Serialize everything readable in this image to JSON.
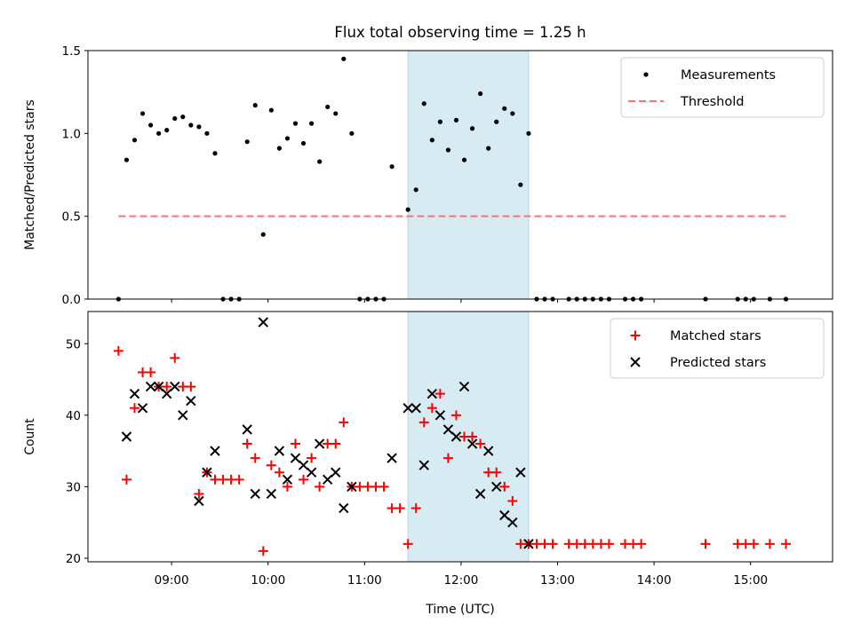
{
  "chart_data": [
    {
      "type": "scatter",
      "title": "Flux total observing time = 1.25 h",
      "ylabel": "Matched/Predicted stars",
      "xlabel": "",
      "ylim": [
        0,
        1.5
      ],
      "yticks": [
        "0.0",
        "0.5",
        "1.0",
        "1.5"
      ],
      "legend_position": "top-right",
      "shaded_interval": [
        "11:27",
        "12:42"
      ],
      "series": [
        {
          "name": "Measurements",
          "marker": "dot",
          "color": "#000000",
          "points": [
            [
              "08:27",
              0.0
            ],
            [
              "08:32",
              0.84
            ],
            [
              "08:37",
              0.96
            ],
            [
              "08:42",
              1.12
            ],
            [
              "08:47",
              1.05
            ],
            [
              "08:52",
              1.0
            ],
            [
              "08:57",
              1.02
            ],
            [
              "09:02",
              1.09
            ],
            [
              "09:07",
              1.1
            ],
            [
              "09:12",
              1.05
            ],
            [
              "09:17",
              1.04
            ],
            [
              "09:22",
              1.0
            ],
            [
              "09:27",
              0.88
            ],
            [
              "09:32",
              0.0
            ],
            [
              "09:37",
              0.0
            ],
            [
              "09:42",
              0.0
            ],
            [
              "09:47",
              0.95
            ],
            [
              "09:52",
              1.17
            ],
            [
              "09:57",
              0.39
            ],
            [
              "10:02",
              1.14
            ],
            [
              "10:07",
              0.91
            ],
            [
              "10:12",
              0.97
            ],
            [
              "10:17",
              1.06
            ],
            [
              "10:22",
              0.94
            ],
            [
              "10:27",
              1.06
            ],
            [
              "10:32",
              0.83
            ],
            [
              "10:37",
              1.16
            ],
            [
              "10:42",
              1.12
            ],
            [
              "10:47",
              1.45
            ],
            [
              "10:52",
              1.0
            ],
            [
              "10:57",
              0.0
            ],
            [
              "11:02",
              0.0
            ],
            [
              "11:07",
              0.0
            ],
            [
              "11:12",
              0.0
            ],
            [
              "11:17",
              0.8
            ],
            [
              "11:27",
              0.54
            ],
            [
              "11:32",
              0.66
            ],
            [
              "11:37",
              1.18
            ],
            [
              "11:42",
              0.96
            ],
            [
              "11:47",
              1.07
            ],
            [
              "11:52",
              0.9
            ],
            [
              "11:57",
              1.08
            ],
            [
              "12:02",
              0.84
            ],
            [
              "12:07",
              1.03
            ],
            [
              "12:12",
              1.24
            ],
            [
              "12:17",
              0.91
            ],
            [
              "12:22",
              1.07
            ],
            [
              "12:27",
              1.15
            ],
            [
              "12:32",
              1.12
            ],
            [
              "12:37",
              0.69
            ],
            [
              "12:42",
              1.0
            ],
            [
              "12:47",
              0.0
            ],
            [
              "12:52",
              0.0
            ],
            [
              "12:57",
              0.0
            ],
            [
              "13:07",
              0.0
            ],
            [
              "13:12",
              0.0
            ],
            [
              "13:17",
              0.0
            ],
            [
              "13:22",
              0.0
            ],
            [
              "13:27",
              0.0
            ],
            [
              "13:32",
              0.0
            ],
            [
              "13:42",
              0.0
            ],
            [
              "13:47",
              0.0
            ],
            [
              "13:52",
              0.0
            ],
            [
              "14:32",
              0.0
            ],
            [
              "14:52",
              0.0
            ],
            [
              "14:57",
              0.0
            ],
            [
              "15:02",
              0.0
            ],
            [
              "15:12",
              0.0
            ],
            [
              "15:22",
              0.0
            ]
          ]
        },
        {
          "name": "Threshold",
          "marker": "dashed-line",
          "color": "#ff7070",
          "points": [
            [
              "08:27",
              0.5
            ],
            [
              "15:22",
              0.5
            ]
          ]
        }
      ]
    },
    {
      "type": "scatter",
      "title": "",
      "ylabel": "Count",
      "xlabel": "Time (UTC)",
      "ylim": [
        19.5,
        54.5
      ],
      "yticks": [
        "20",
        "30",
        "40",
        "50"
      ],
      "xticks": [
        "09:00",
        "10:00",
        "11:00",
        "12:00",
        "13:00",
        "14:00",
        "15:00"
      ],
      "legend_position": "top-right",
      "shaded_interval": [
        "11:27",
        "12:42"
      ],
      "series": [
        {
          "name": "Matched stars",
          "marker": "plus",
          "color": "#ff0000",
          "points": [
            [
              "08:27",
              49
            ],
            [
              "08:32",
              31
            ],
            [
              "08:37",
              41
            ],
            [
              "08:42",
              46
            ],
            [
              "08:47",
              46
            ],
            [
              "08:52",
              44
            ],
            [
              "08:57",
              44
            ],
            [
              "09:02",
              48
            ],
            [
              "09:07",
              44
            ],
            [
              "09:12",
              44
            ],
            [
              "09:17",
              29
            ],
            [
              "09:22",
              32
            ],
            [
              "09:27",
              31
            ],
            [
              "09:32",
              31
            ],
            [
              "09:37",
              31
            ],
            [
              "09:42",
              31
            ],
            [
              "09:47",
              36
            ],
            [
              "09:52",
              34
            ],
            [
              "09:57",
              21
            ],
            [
              "10:02",
              33
            ],
            [
              "10:07",
              32
            ],
            [
              "10:12",
              30
            ],
            [
              "10:17",
              36
            ],
            [
              "10:22",
              31
            ],
            [
              "10:27",
              34
            ],
            [
              "10:32",
              30
            ],
            [
              "10:37",
              36
            ],
            [
              "10:42",
              36
            ],
            [
              "10:47",
              39
            ],
            [
              "10:52",
              30
            ],
            [
              "10:57",
              30
            ],
            [
              "11:02",
              30
            ],
            [
              "11:07",
              30
            ],
            [
              "11:12",
              30
            ],
            [
              "11:17",
              27
            ],
            [
              "11:22",
              27
            ],
            [
              "11:27",
              22
            ],
            [
              "11:32",
              27
            ],
            [
              "11:37",
              39
            ],
            [
              "11:42",
              41
            ],
            [
              "11:47",
              43
            ],
            [
              "11:52",
              34
            ],
            [
              "11:57",
              40
            ],
            [
              "12:02",
              37
            ],
            [
              "12:07",
              37
            ],
            [
              "12:12",
              36
            ],
            [
              "12:17",
              32
            ],
            [
              "12:22",
              32
            ],
            [
              "12:27",
              30
            ],
            [
              "12:32",
              28
            ],
            [
              "12:37",
              22
            ],
            [
              "12:42",
              22
            ],
            [
              "12:47",
              22
            ],
            [
              "12:52",
              22
            ],
            [
              "12:57",
              22
            ],
            [
              "13:07",
              22
            ],
            [
              "13:12",
              22
            ],
            [
              "13:17",
              22
            ],
            [
              "13:22",
              22
            ],
            [
              "13:27",
              22
            ],
            [
              "13:32",
              22
            ],
            [
              "13:42",
              22
            ],
            [
              "13:47",
              22
            ],
            [
              "13:52",
              22
            ],
            [
              "14:32",
              22
            ],
            [
              "14:52",
              22
            ],
            [
              "14:57",
              22
            ],
            [
              "15:02",
              22
            ],
            [
              "15:12",
              22
            ],
            [
              "15:22",
              22
            ]
          ]
        },
        {
          "name": "Predicted stars",
          "marker": "x",
          "color": "#000000",
          "points": [
            [
              "08:32",
              37
            ],
            [
              "08:37",
              43
            ],
            [
              "08:42",
              41
            ],
            [
              "08:47",
              44
            ],
            [
              "08:52",
              44
            ],
            [
              "08:57",
              43
            ],
            [
              "09:02",
              44
            ],
            [
              "09:07",
              40
            ],
            [
              "09:12",
              42
            ],
            [
              "09:17",
              28
            ],
            [
              "09:22",
              32
            ],
            [
              "09:27",
              35
            ],
            [
              "09:47",
              38
            ],
            [
              "09:52",
              29
            ],
            [
              "09:57",
              53
            ],
            [
              "10:02",
              29
            ],
            [
              "10:07",
              35
            ],
            [
              "10:12",
              31
            ],
            [
              "10:17",
              34
            ],
            [
              "10:22",
              33
            ],
            [
              "10:27",
              32
            ],
            [
              "10:32",
              36
            ],
            [
              "10:37",
              31
            ],
            [
              "10:42",
              32
            ],
            [
              "10:47",
              27
            ],
            [
              "10:52",
              30
            ],
            [
              "11:17",
              34
            ],
            [
              "11:27",
              41
            ],
            [
              "11:32",
              41
            ],
            [
              "11:37",
              33
            ],
            [
              "11:42",
              43
            ],
            [
              "11:47",
              40
            ],
            [
              "11:52",
              38
            ],
            [
              "11:57",
              37
            ],
            [
              "12:02",
              44
            ],
            [
              "12:07",
              36
            ],
            [
              "12:12",
              29
            ],
            [
              "12:17",
              35
            ],
            [
              "12:22",
              30
            ],
            [
              "12:27",
              26
            ],
            [
              "12:32",
              25
            ],
            [
              "12:37",
              32
            ],
            [
              "12:42",
              22
            ]
          ]
        }
      ]
    }
  ]
}
